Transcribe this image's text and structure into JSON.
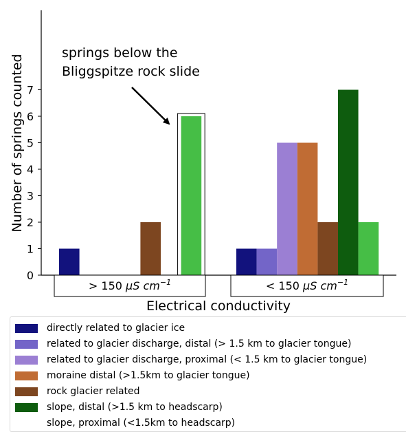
{
  "chart_data": {
    "type": "bar",
    "ylabel": "Number of springs counted",
    "xlabel": "Electrical conductivity",
    "ylim": [
      0,
      7
    ],
    "yticks": [
      "0",
      "1",
      "2",
      "3",
      "4",
      "5",
      "6",
      "7"
    ],
    "groups": [
      {
        "label": "> 150 μS cm⁻¹",
        "label_main": "> 150 ",
        "label_unit": "μS cm",
        "label_exp": "−1"
      },
      {
        "label": "< 150 μS cm⁻¹",
        "label_main": "< 150 ",
        "label_unit": "μS cm",
        "label_exp": "−1"
      }
    ],
    "series": [
      {
        "name": "directly related to glacier ice",
        "color": "#12127d",
        "values": [
          1,
          1
        ]
      },
      {
        "name": "related to glacier discharge, distal (> 1.5 km to glacier tongue)",
        "color": "#7365c8",
        "values": [
          0,
          1
        ]
      },
      {
        "name": "related to glacier discharge, proximal (< 1.5 km to glacier tongue)",
        "color": "#9b7fd3",
        "values": [
          0,
          5
        ]
      },
      {
        "name": "moraine distal (>1.5km to glacier tongue)",
        "color": "#c06c34",
        "values": [
          0,
          5
        ]
      },
      {
        "name": "rock glacier related",
        "color": "#7d4620",
        "values": [
          2,
          2
        ]
      },
      {
        "name": "slope, distal (>1.5 km to headscarp)",
        "color": "#0e5c0e",
        "values": [
          0,
          7
        ]
      },
      {
        "name": "slope, proximal (<1.5km to headscarp)",
        "color": "#46be46",
        "values": [
          6,
          2
        ]
      }
    ],
    "annotation": {
      "line1": "springs below the",
      "line2": "Bliggspitze rock slide",
      "target": "> 150 μS cm⁻¹, slope, proximal (<1.5km to headscarp)"
    },
    "legend_position": "bottom"
  }
}
